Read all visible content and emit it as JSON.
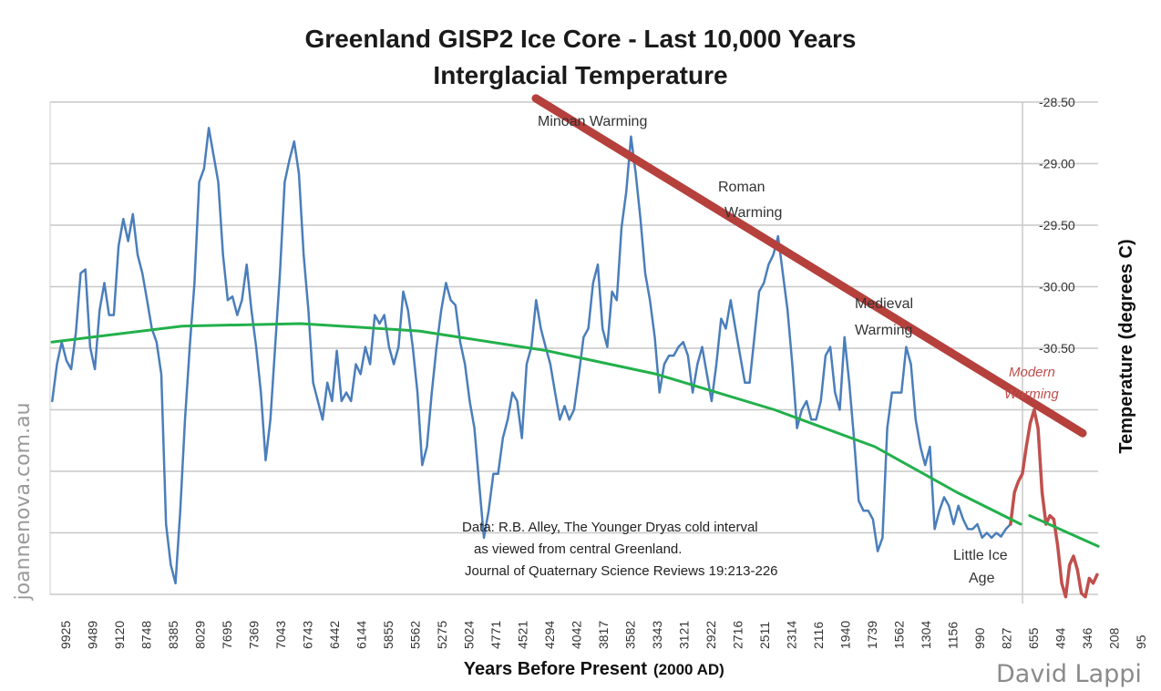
{
  "chart_data": {
    "type": "line",
    "title": "Greenland GISP2 Ice Core - Last 10,000 Years",
    "subtitle": "Interglacial Temperature",
    "xlabel": "Years Before Present",
    "xlabel_suffix": "(2000 AD)",
    "ylabel": "Temperature (degrees C)",
    "x_ticks": [
      "9925",
      "9489",
      "9120",
      "8748",
      "8385",
      "8029",
      "7695",
      "7369",
      "7043",
      "6743",
      "6442",
      "6144",
      "5855",
      "5562",
      "5275",
      "5024",
      "4771",
      "4521",
      "4294",
      "4042",
      "3817",
      "3582",
      "3343",
      "3121",
      "2922",
      "2716",
      "2511",
      "2314",
      "2116",
      "1940",
      "1739",
      "1562",
      "1304",
      "1156",
      "990",
      "827",
      "655",
      "494",
      "346",
      "208",
      "95"
    ],
    "y_ticks": [
      "-28.50",
      "-29.00",
      "-29.50",
      "-30.00",
      "-30.50"
    ],
    "y_grid_values": [
      -28.5,
      -29.0,
      -29.5,
      -30.0,
      -30.5,
      -31.0,
      -31.5,
      -32.0,
      -32.5
    ],
    "ylim": [
      -32.5,
      -28.5
    ],
    "x_unit_note": "x in tick-index units (0 = 9925, 40 = 95)",
    "grid": true,
    "series": [
      {
        "name": "GISP2 temperature",
        "color": "#4a7ebb",
        "x_range": [
          -0.5,
          35.15
        ],
        "values": [
          -30.93,
          -30.63,
          -30.45,
          -30.6,
          -30.67,
          -30.37,
          -29.89,
          -29.86,
          -30.49,
          -30.67,
          -30.19,
          -29.97,
          -30.23,
          -30.23,
          -29.67,
          -29.45,
          -29.63,
          -29.41,
          -29.74,
          -29.89,
          -30.11,
          -30.34,
          -30.45,
          -30.71,
          -31.93,
          -32.26,
          -32.41,
          -31.82,
          -31.08,
          -30.49,
          -29.97,
          -29.15,
          -29.04,
          -28.71,
          -28.93,
          -29.15,
          -29.74,
          -30.11,
          -30.08,
          -30.23,
          -30.11,
          -29.82,
          -30.19,
          -30.49,
          -30.86,
          -31.41,
          -31.08,
          -30.49,
          -29.89,
          -29.15,
          -28.97,
          -28.82,
          -29.08,
          -29.74,
          -30.19,
          -30.78,
          -30.93,
          -31.08,
          -30.78,
          -30.93,
          -30.52,
          -30.93,
          -30.86,
          -30.93,
          -30.63,
          -30.71,
          -30.49,
          -30.63,
          -30.23,
          -30.3,
          -30.23,
          -30.49,
          -30.63,
          -30.49,
          -30.04,
          -30.19,
          -30.49,
          -30.86,
          -31.45,
          -31.3,
          -30.86,
          -30.49,
          -30.19,
          -29.97,
          -30.11,
          -30.15,
          -30.45,
          -30.63,
          -30.93,
          -31.15,
          -31.6,
          -32.04,
          -31.82,
          -31.52,
          -31.52,
          -31.23,
          -31.08,
          -30.86,
          -30.93,
          -31.23,
          -30.63,
          -30.49,
          -30.11,
          -30.34,
          -30.49,
          -30.63,
          -30.86,
          -31.08,
          -30.97,
          -31.08,
          -31.0,
          -30.71,
          -30.41,
          -30.34,
          -29.97,
          -29.82,
          -30.34,
          -30.49,
          -30.04,
          -30.11,
          -29.52,
          -29.23,
          -28.78,
          -29.08,
          -29.45,
          -29.89,
          -30.11,
          -30.41,
          -30.86,
          -30.63,
          -30.56,
          -30.56,
          -30.49,
          -30.45,
          -30.56,
          -30.86,
          -30.63,
          -30.49,
          -30.71,
          -30.93,
          -30.63,
          -30.26,
          -30.34,
          -30.11,
          -30.34,
          -30.56,
          -30.78,
          -30.78,
          -30.41,
          -30.04,
          -29.97,
          -29.82,
          -29.74,
          -29.59,
          -29.89,
          -30.19,
          -30.63,
          -31.15,
          -31.0,
          -30.93,
          -31.08,
          -31.08,
          -30.93,
          -30.56,
          -30.49,
          -30.86,
          -31.0,
          -30.41,
          -30.78,
          -31.23,
          -31.74,
          -31.82,
          -31.82,
          -31.89,
          -32.15,
          -32.04,
          -31.15,
          -30.86,
          -30.86,
          -30.86,
          -30.49,
          -30.63,
          -31.08,
          -31.3,
          -31.45,
          -31.3,
          -31.97,
          -31.82,
          -31.71,
          -31.78,
          -31.93,
          -31.78,
          -31.89,
          -31.97,
          -31.97,
          -31.93,
          -32.04,
          -32.0,
          -32.04,
          -32.0,
          -32.03,
          -31.97,
          -31.93
        ]
      },
      {
        "name": "Modern warming",
        "color": "#c0504d",
        "x_range": [
          35.15,
          38.37
        ],
        "values": [
          -31.93,
          -31.67,
          -31.58,
          -31.52,
          -31.3,
          -31.11,
          -31.0,
          -31.15,
          -31.67,
          -31.93,
          -31.86,
          -31.89,
          -32.11,
          -32.41,
          -32.52,
          -32.26,
          -32.19,
          -32.3,
          -32.49,
          -32.52,
          -32.37,
          -32.41,
          -32.34
        ]
      },
      {
        "name": "Long-term trend",
        "color": "#22b04b",
        "segments": [
          [
            [
              -0.51,
              -30.45
            ],
            [
              4.34,
              -30.32
            ],
            [
              8.75,
              -30.3
            ],
            [
              13.15,
              -30.36
            ],
            [
              17.9,
              -30.52
            ],
            [
              21.97,
              -30.71
            ],
            [
              26.37,
              -31.0
            ],
            [
              30.1,
              -31.3
            ],
            [
              33.15,
              -31.67
            ],
            [
              35.53,
              -31.93
            ]
          ],
          [
            [
              35.86,
              -31.86
            ],
            [
              38.41,
              -32.11
            ]
          ]
        ]
      },
      {
        "name": "Declining peaks line",
        "color": "#b5403c",
        "segments": [
          [
            [
              17.49,
              -28.47
            ],
            [
              37.83,
              -31.19
            ]
          ]
        ]
      }
    ],
    "annotations": {
      "minoan": "Minoan Warming",
      "roman_1": "Roman",
      "roman_2": "Warming",
      "medieval_1": "Medieval",
      "medieval_2": "Warming",
      "modern_1": "Modern",
      "modern_2": "Warming",
      "lia_1": "Little Ice",
      "lia_2": "Age",
      "source_1": "Data: R.B. Alley,  The Younger Dryas cold interval",
      "source_2": "as viewed from central Greenland.",
      "source_3": "Journal of Quaternary  Science Reviews 19:213-226"
    },
    "watermark": "joannenova.com.au",
    "credit": "David Lappi"
  }
}
